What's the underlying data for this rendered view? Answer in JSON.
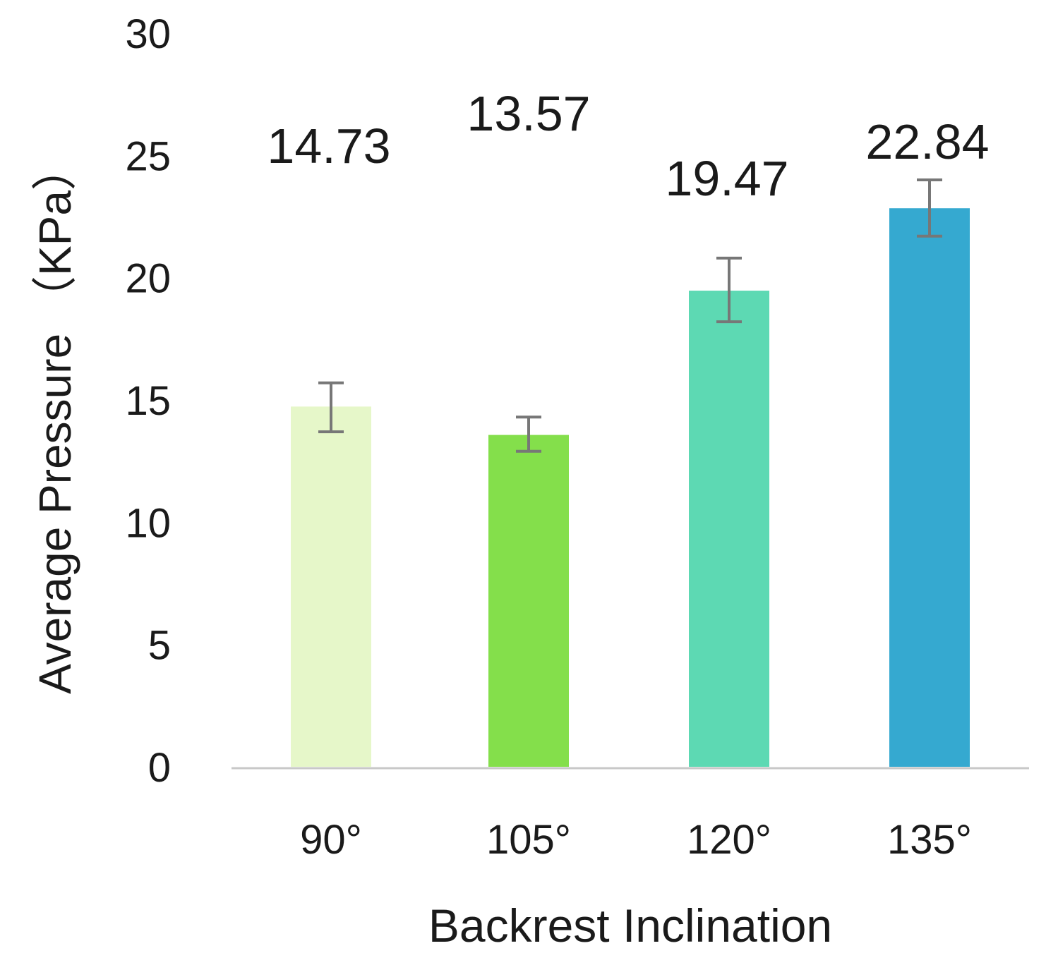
{
  "chart_data": {
    "type": "bar",
    "title": "",
    "xlabel": "Backrest Inclination",
    "ylabel": "Average Pressure （KPa）",
    "categories": [
      "90°",
      "105°",
      "120°",
      "135°"
    ],
    "values": [
      14.73,
      13.57,
      19.47,
      22.84
    ],
    "data_labels": [
      "14.73",
      "13.57",
      "19.47",
      "22.84"
    ],
    "error_bars": [
      {
        "low": 13.7,
        "high": 15.7
      },
      {
        "low": 12.9,
        "high": 14.3
      },
      {
        "low": 18.2,
        "high": 20.8
      },
      {
        "low": 21.7,
        "high": 24.0
      }
    ],
    "colors": [
      "#e6f7c9",
      "#84df4b",
      "#5dd9b3",
      "#35a9d0"
    ],
    "error_bar_color": "#777777",
    "baseline_color": "#c8c8c8",
    "ylim": [
      0,
      30
    ],
    "yticks": [
      0,
      5,
      10,
      15,
      20,
      25,
      30
    ],
    "grid": false,
    "legend": "none"
  }
}
